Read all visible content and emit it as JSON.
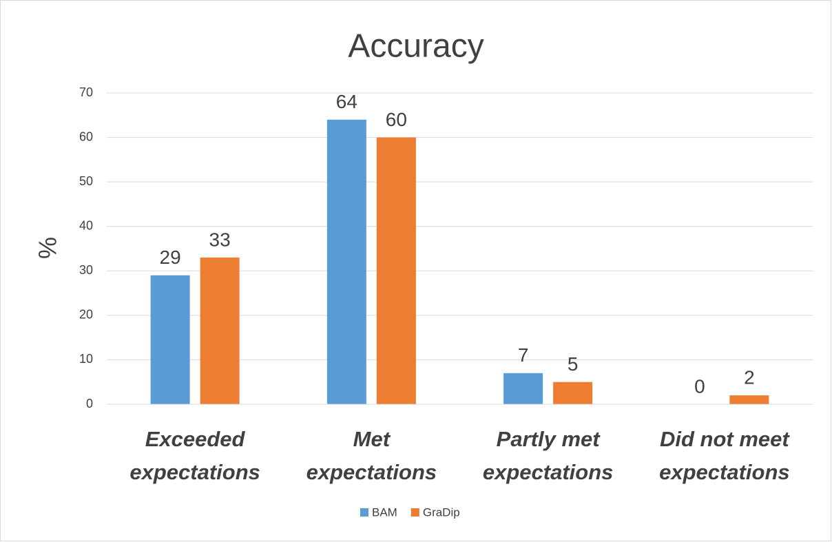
{
  "chart_data": {
    "type": "bar",
    "title": "Accuracy",
    "y_label": "%",
    "categories": [
      "Exceeded expectations",
      "Met expectations",
      "Partly met expectations",
      "Did not meet expectations"
    ],
    "series": [
      {
        "name": "BAM",
        "color": "#5b9bd5",
        "values": [
          29,
          64,
          7,
          0
        ]
      },
      {
        "name": "GraDip",
        "color": "#ed7d31",
        "values": [
          33,
          60,
          5,
          2
        ]
      }
    ],
    "ylim": [
      0,
      70
    ],
    "yticks": [
      0,
      10,
      20,
      30,
      40,
      50,
      60,
      70
    ],
    "grid": true,
    "legend": "bottom"
  }
}
